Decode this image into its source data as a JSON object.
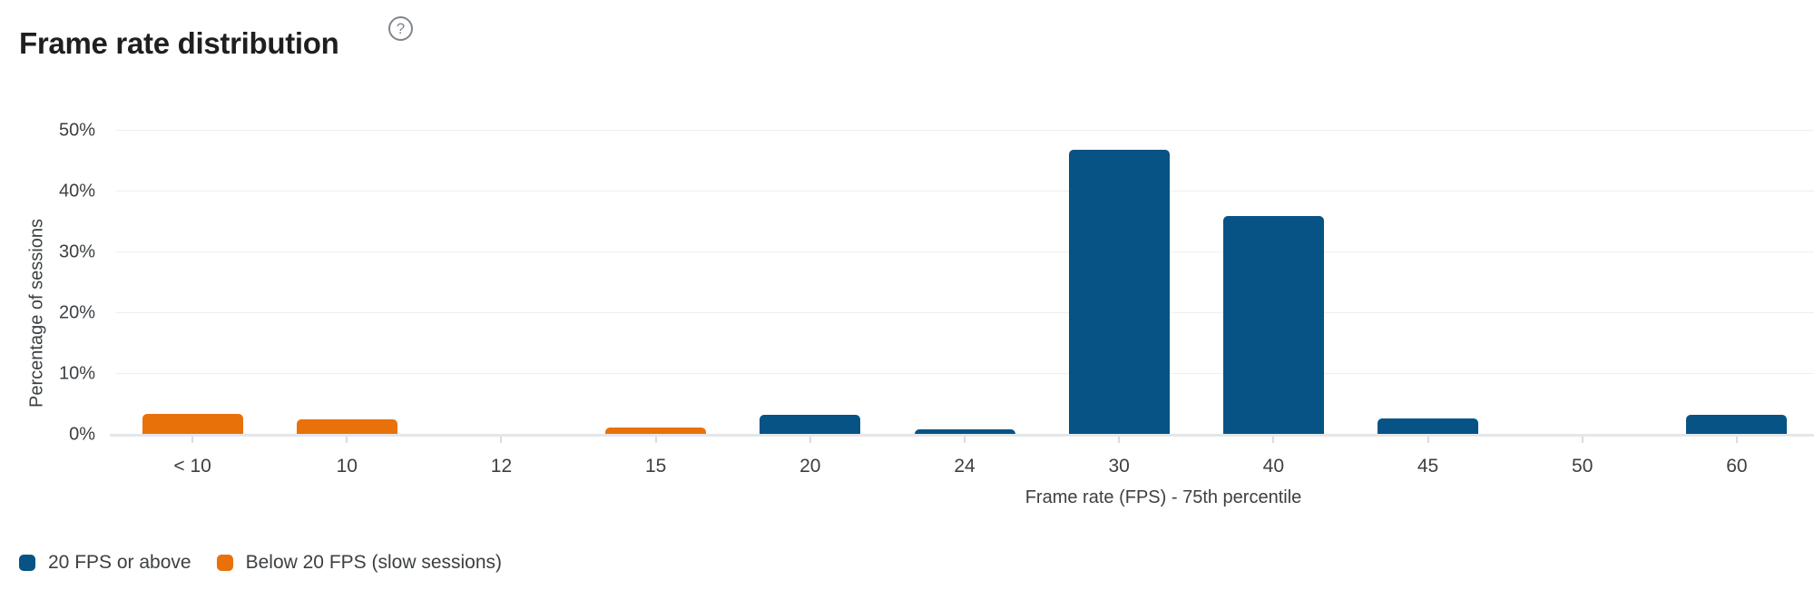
{
  "header": {
    "title": "Frame rate distribution",
    "help_glyph": "?"
  },
  "chart_data": {
    "type": "bar",
    "title": "Frame rate distribution",
    "categories": [
      "< 10",
      "10",
      "12",
      "15",
      "20",
      "24",
      "30",
      "40",
      "45",
      "50",
      "60"
    ],
    "series": [
      {
        "name": "20 FPS or above",
        "color": "#075385",
        "values": [
          0,
          0,
          0,
          0,
          3.2,
          0.7,
          46.7,
          35.8,
          2.6,
          0,
          3.2
        ]
      },
      {
        "name": "Below 20 FPS (slow sessions)",
        "color": "#e8710a",
        "values": [
          3.3,
          2.4,
          0,
          1.0,
          0,
          0,
          0,
          0,
          0,
          0,
          0
        ]
      }
    ],
    "xlabel": "Frame rate (FPS) - 75th percentile",
    "ylabel": "Percentage of sessions",
    "ylim": [
      0,
      50
    ],
    "ytick_step": 10,
    "ytick_labels": [
      "0%",
      "10%",
      "20%",
      "30%",
      "40%",
      "50%"
    ],
    "grid": true,
    "legend_position": "bottom"
  },
  "colors": {
    "above_threshold": "#075385",
    "below_threshold": "#e8710a",
    "axis_text": "#3c4043",
    "title_text": "#1f1f1f",
    "gridline": "#edeff1"
  }
}
